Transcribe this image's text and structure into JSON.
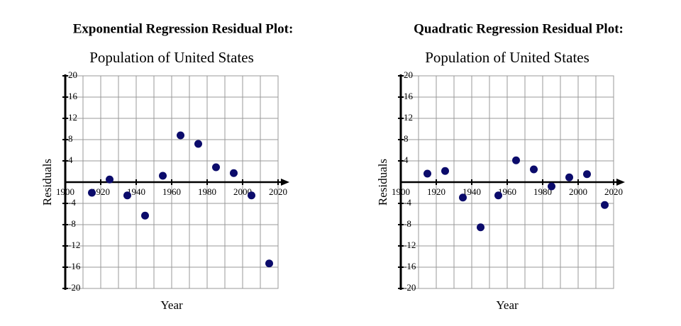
{
  "chart_data": [
    {
      "type": "scatter",
      "heading": "Exponential Regression Residual Plot:",
      "title": "Population of United States",
      "xlabel": "Year",
      "ylabel": "Residuals",
      "color": "#0b0b6b",
      "x": [
        1915,
        1925,
        1935,
        1945,
        1955,
        1965,
        1975,
        1985,
        1995,
        2005,
        2015
      ],
      "y": [
        -2,
        0.5,
        -2.5,
        -6.3,
        1.2,
        8.8,
        7.2,
        2.8,
        1.7,
        -2.5,
        -15.3
      ],
      "xlim": [
        1900,
        2020
      ],
      "ylim": [
        -20,
        20
      ],
      "xticks": [
        1900,
        1920,
        1940,
        1960,
        1980,
        2000,
        2020
      ],
      "yticks": [
        -20,
        -16,
        -12,
        -8,
        -4,
        4,
        8,
        12,
        16,
        20
      ],
      "x_grid_step": 10,
      "grid": true
    },
    {
      "type": "scatter",
      "heading": "Quadratic Regression Residual Plot:",
      "title": "Population of United States",
      "xlabel": "Year",
      "ylabel": "Residuals",
      "color": "#0b0b6b",
      "x": [
        1915,
        1925,
        1935,
        1945,
        1955,
        1965,
        1975,
        1985,
        1995,
        2005,
        2015
      ],
      "y": [
        1.6,
        2.1,
        -2.9,
        -8.5,
        -2.5,
        4.1,
        2.4,
        -0.8,
        0.9,
        1.5,
        -4.3
      ],
      "xlim": [
        1900,
        2020
      ],
      "ylim": [
        -20,
        20
      ],
      "xticks": [
        1900,
        1920,
        1940,
        1960,
        1980,
        2000,
        2020
      ],
      "yticks": [
        -20,
        -16,
        -12,
        -8,
        -4,
        4,
        8,
        12,
        16,
        20
      ],
      "x_grid_step": 10,
      "grid": true
    }
  ]
}
